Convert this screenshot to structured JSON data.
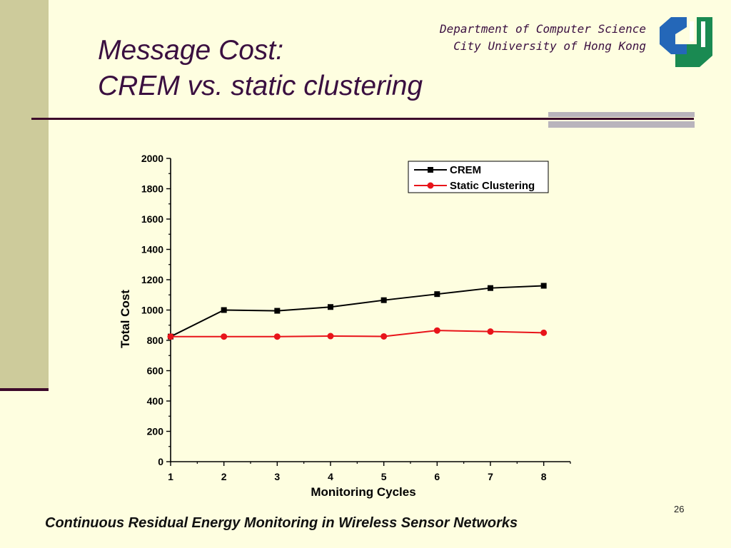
{
  "slide": {
    "title_line1": "Message Cost:",
    "title_line2": "CREM vs. static clustering",
    "department": "Department of Computer Science",
    "university": "City University of Hong Kong",
    "page_number": "26",
    "footer": "Continuous Residual Energy Monitoring in Wireless Sensor Networks"
  },
  "colors": {
    "background": "#FEFEE0",
    "title": "#3A0F40",
    "left_bar": "#CDCB9B",
    "rule": "#3D0A2B",
    "logo_blue": "#2467B8",
    "logo_green": "#1A8A52",
    "crem": "#000000",
    "static": "#E8141A"
  },
  "chart_data": {
    "type": "line",
    "xlabel": "Monitoring Cycles",
    "ylabel": "Total Cost",
    "x": [
      1,
      2,
      3,
      4,
      5,
      6,
      7,
      8
    ],
    "xlim": [
      1,
      8.5
    ],
    "ylim": [
      0,
      2000
    ],
    "y_ticks": [
      0,
      200,
      400,
      600,
      800,
      1000,
      1200,
      1400,
      1600,
      1800,
      2000
    ],
    "legend_position": "top-right",
    "grid": false,
    "series": [
      {
        "name": "CREM",
        "marker": "square",
        "color": "#000000",
        "values": [
          825,
          1000,
          995,
          1020,
          1065,
          1105,
          1145,
          1160
        ]
      },
      {
        "name": "Static Clustering",
        "marker": "circle",
        "color": "#E8141A",
        "values": [
          825,
          825,
          825,
          828,
          826,
          865,
          858,
          850
        ]
      }
    ]
  }
}
